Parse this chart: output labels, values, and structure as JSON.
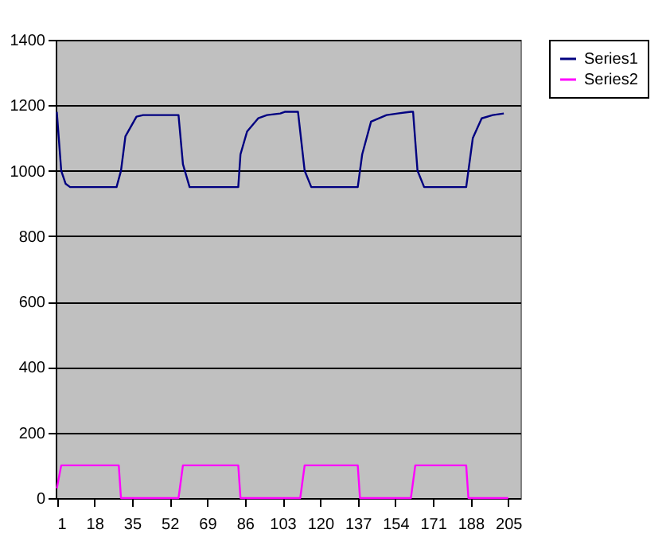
{
  "chart_data": {
    "type": "line",
    "xlim": [
      0.5,
      210.5
    ],
    "xticks": [
      1,
      18,
      35,
      52,
      69,
      86,
      103,
      120,
      137,
      154,
      171,
      188,
      205
    ],
    "ylim": [
      0,
      1400
    ],
    "yticks": [
      0,
      200,
      400,
      600,
      800,
      1000,
      1200,
      1400
    ],
    "grid": "y",
    "legend": "right",
    "series": [
      {
        "name": "Series1",
        "color": "#000080",
        "x": [
          1,
          3,
          5,
          7,
          28,
          30,
          32,
          37,
          40,
          56,
          58,
          61,
          83,
          84,
          87,
          92,
          96,
          102,
          104,
          110,
          113,
          116,
          137,
          139,
          143,
          150,
          155,
          161,
          162,
          164,
          167,
          186,
          187,
          189,
          193,
          198,
          203
        ],
        "values": [
          1180,
          1000,
          960,
          950,
          950,
          1000,
          1105,
          1165,
          1170,
          1170,
          1020,
          950,
          950,
          1050,
          1120,
          1160,
          1170,
          1175,
          1180,
          1180,
          1000,
          950,
          950,
          1050,
          1150,
          1170,
          1175,
          1180,
          1180,
          1000,
          950,
          950,
          1000,
          1100,
          1160,
          1170,
          1175
        ]
      },
      {
        "name": "Series2",
        "color": "#ff00ff",
        "x": [
          1,
          3,
          29,
          30,
          56,
          58,
          83,
          84,
          111,
          113,
          137,
          138,
          161,
          163,
          186,
          187,
          205
        ],
        "values": [
          30,
          100,
          100,
          0,
          0,
          100,
          100,
          0,
          0,
          100,
          100,
          0,
          0,
          100,
          100,
          0,
          0
        ]
      }
    ]
  }
}
